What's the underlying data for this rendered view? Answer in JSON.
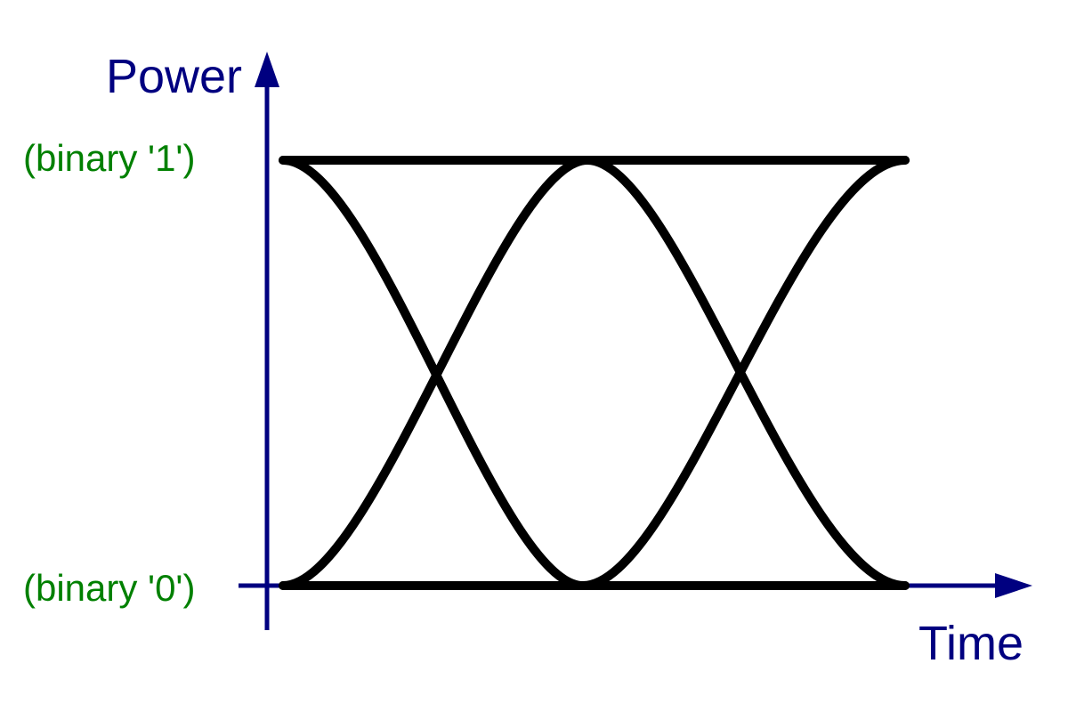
{
  "axes": {
    "y_label": "Power",
    "x_label": "Time",
    "color": "#000080"
  },
  "levels": {
    "high_label": "(binary '1')",
    "low_label": "(binary '0')",
    "color": "#008000"
  },
  "traces": {
    "color": "#000000",
    "count": 6
  }
}
